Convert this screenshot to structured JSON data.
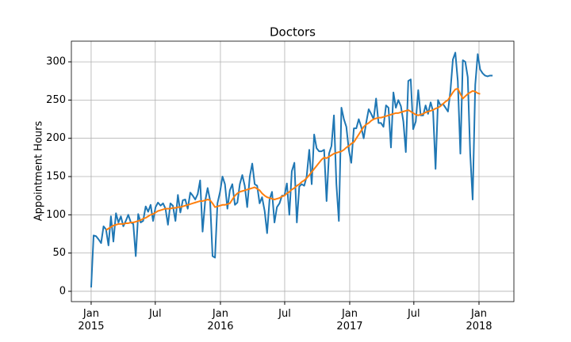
{
  "chart_data": {
    "type": "line",
    "title": "Doctors",
    "y_label": "Appointment Hours",
    "x": [
      2015.0,
      2015.019,
      2015.038,
      2015.057,
      2015.077,
      2015.096,
      2015.115,
      2015.134,
      2015.153,
      2015.172,
      2015.192,
      2015.211,
      2015.23,
      2015.249,
      2015.268,
      2015.287,
      2015.307,
      2015.326,
      2015.345,
      2015.364,
      2015.383,
      2015.402,
      2015.422,
      2015.441,
      2015.46,
      2015.479,
      2015.498,
      2015.517,
      2015.537,
      2015.556,
      2015.575,
      2015.594,
      2015.613,
      2015.632,
      2015.652,
      2015.671,
      2015.69,
      2015.709,
      2015.728,
      2015.747,
      2015.767,
      2015.786,
      2015.805,
      2015.824,
      2015.843,
      2015.862,
      2015.882,
      2015.901,
      2015.92,
      2015.939,
      2015.958,
      2015.977,
      2015.997,
      2016.016,
      2016.035,
      2016.054,
      2016.073,
      2016.092,
      2016.112,
      2016.131,
      2016.15,
      2016.169,
      2016.188,
      2016.207,
      2016.227,
      2016.246,
      2016.265,
      2016.284,
      2016.303,
      2016.322,
      2016.342,
      2016.361,
      2016.38,
      2016.399,
      2016.418,
      2016.437,
      2016.457,
      2016.476,
      2016.495,
      2016.514,
      2016.533,
      2016.552,
      2016.572,
      2016.591,
      2016.61,
      2016.629,
      2016.648,
      2016.667,
      2016.687,
      2016.706,
      2016.725,
      2016.744,
      2016.763,
      2016.782,
      2016.802,
      2016.821,
      2016.84,
      2016.859,
      2016.878,
      2016.897,
      2016.916,
      2016.936,
      2016.955,
      2016.974,
      2016.993,
      2017.012,
      2017.032,
      2017.051,
      2017.07,
      2017.089,
      2017.108,
      2017.127,
      2017.147,
      2017.166,
      2017.185,
      2017.204,
      2017.223,
      2017.242,
      2017.261,
      2017.281,
      2017.3,
      2017.319,
      2017.338,
      2017.357,
      2017.376,
      2017.396,
      2017.415,
      2017.434,
      2017.453,
      2017.472,
      2017.491,
      2017.511,
      2017.53,
      2017.549,
      2017.568,
      2017.587,
      2017.606,
      2017.626,
      2017.645,
      2017.664,
      2017.683,
      2017.702,
      2017.721,
      2017.741,
      2017.76,
      2017.779,
      2017.798,
      2017.817,
      2017.836,
      2017.856,
      2017.875,
      2017.894,
      2017.913,
      2017.932,
      2017.951,
      2017.971,
      2017.99,
      2018.009,
      2018.028,
      2018.047,
      2018.066,
      2018.085,
      2018.105
    ],
    "series": [
      {
        "color": "#1f77b4",
        "values": [
          5,
          73,
          72,
          68,
          63,
          85,
          81,
          60,
          98,
          65,
          102,
          90,
          98,
          85,
          92,
          100,
          90,
          88,
          46,
          101,
          90,
          92,
          111,
          104,
          113,
          92,
          110,
          116,
          112,
          115,
          108,
          87,
          115,
          112,
          92,
          126,
          103,
          119,
          120,
          108,
          129,
          125,
          120,
          127,
          145,
          78,
          118,
          135,
          119,
          46,
          44,
          115,
          130,
          150,
          140,
          108,
          132,
          140,
          113,
          116,
          140,
          152,
          138,
          110,
          150,
          167,
          140,
          138,
          115,
          123,
          105,
          76,
          120,
          130,
          90,
          110,
          115,
          125,
          125,
          141,
          100,
          157,
          168,
          90,
          137,
          140,
          138,
          150,
          185,
          140,
          205,
          187,
          183,
          183,
          185,
          118,
          180,
          190,
          230,
          140,
          92,
          240,
          225,
          215,
          185,
          168,
          213,
          213,
          225,
          215,
          200,
          220,
          238,
          232,
          225,
          252,
          220,
          220,
          215,
          243,
          240,
          188,
          260,
          240,
          250,
          242,
          222,
          182,
          275,
          277,
          212,
          222,
          263,
          230,
          230,
          243,
          232,
          247,
          235,
          160,
          250,
          243,
          245,
          240,
          235,
          262,
          303,
          312,
          275,
          180,
          302,
          300,
          280,
          180,
          120,
          270,
          310,
          290,
          285,
          282,
          281,
          282,
          282
        ]
      },
      {
        "color": "#ff7f0e",
        "values": [
          null,
          null,
          null,
          null,
          null,
          null,
          80,
          82,
          84,
          86,
          87,
          88,
          88,
          88,
          89,
          89,
          90,
          90,
          91,
          92,
          93,
          95,
          96,
          98,
          100,
          101,
          103,
          105,
          106,
          107,
          108,
          108,
          108,
          109,
          109,
          110,
          110,
          111,
          112,
          113,
          114,
          115,
          116,
          117,
          118,
          118,
          119,
          120,
          119,
          115,
          110,
          111,
          112,
          113,
          113,
          114,
          115,
          120,
          125,
          128,
          130,
          131,
          132,
          133,
          134,
          135,
          136,
          134,
          132,
          128,
          125,
          123,
          122,
          121,
          120,
          121,
          122,
          124,
          125,
          128,
          130,
          133,
          135,
          138,
          140,
          143,
          145,
          148,
          152,
          156,
          160,
          164,
          168,
          172,
          175,
          174,
          176,
          178,
          180,
          181,
          182,
          183,
          185,
          188,
          190,
          193,
          195,
          200,
          205,
          210,
          215,
          218,
          220,
          223,
          225,
          226,
          227,
          227,
          228,
          229,
          230,
          231,
          232,
          233,
          233,
          234,
          235,
          236,
          237,
          235,
          233,
          231,
          230,
          231,
          232,
          234,
          235,
          236,
          237,
          239,
          240,
          242,
          245,
          248,
          250,
          255,
          260,
          264,
          265,
          258,
          252,
          255,
          258,
          260,
          262,
          261,
          259,
          258,
          null,
          null,
          null,
          null,
          null
        ]
      }
    ],
    "xlim": [
      2014.847,
      2018.27
    ],
    "xticks": [
      {
        "value": 2015,
        "label": "Jan\n2015"
      },
      {
        "value": 2015.496,
        "label": "Jul"
      },
      {
        "value": 2016,
        "label": "Jan\n2016"
      },
      {
        "value": 2016.497,
        "label": "Jul"
      },
      {
        "value": 2017,
        "label": "Jan\n2017"
      },
      {
        "value": 2017.496,
        "label": "Jul"
      },
      {
        "value": 2018,
        "label": "Jan\n2018"
      }
    ],
    "ylim": [
      -13.5,
      327
    ],
    "yticks": [
      0,
      50,
      100,
      150,
      200,
      250,
      300
    ],
    "grid": true
  }
}
